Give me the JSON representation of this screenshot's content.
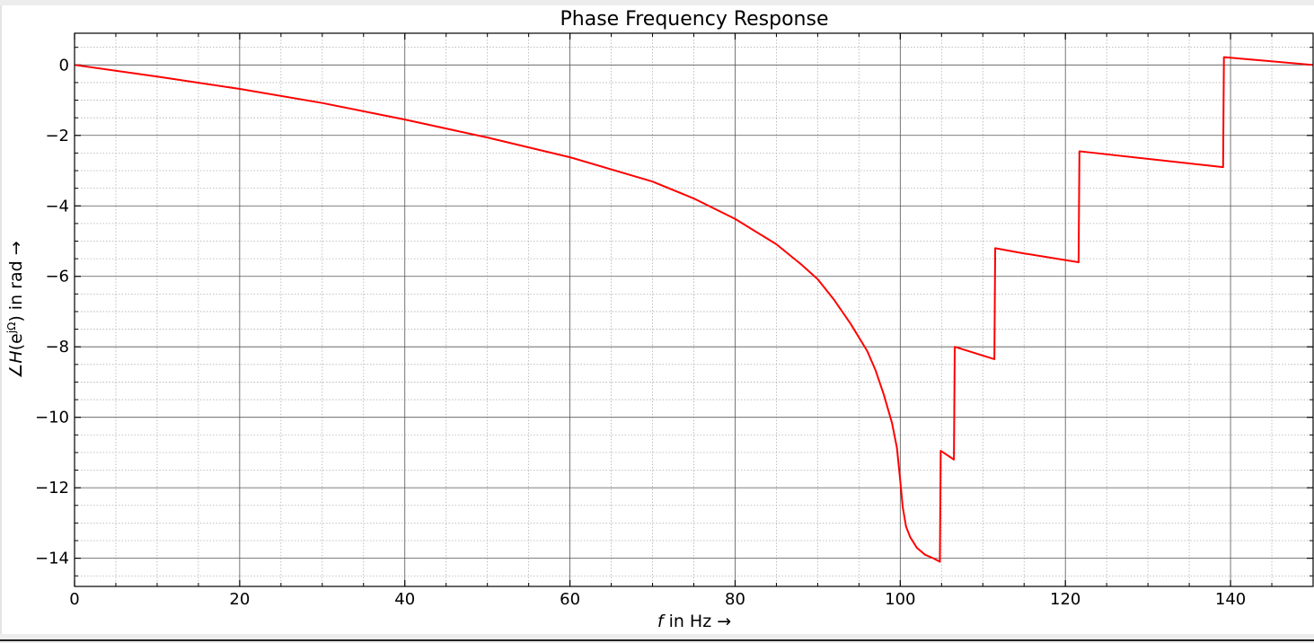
{
  "chart_data": {
    "type": "line",
    "title": "Phase Frequency Response",
    "xlabel": {
      "var": "f",
      "rest": " in Hz →"
    },
    "ylabel": {
      "angle": "∠",
      "var": "H",
      "open": "(e",
      "sup": "jΩ",
      "rest": ") in rad →"
    },
    "xlim": [
      0,
      150
    ],
    "ylim": [
      -14.8,
      0.9
    ],
    "x_major_ticks": [
      0,
      20,
      40,
      60,
      80,
      100,
      120,
      140
    ],
    "x_tick_labels": [
      "0",
      "20",
      "40",
      "60",
      "80",
      "100",
      "120",
      "140"
    ],
    "x_minor_step": 5,
    "y_major_ticks": [
      0,
      -2,
      -4,
      -6,
      -8,
      -10,
      -12,
      -14
    ],
    "y_tick_labels": [
      "0",
      "−2",
      "−4",
      "−6",
      "−8",
      "−10",
      "−12",
      "−14"
    ],
    "y_minor_step": 0.5,
    "grid": true,
    "line_color": "#ff0000",
    "series": [
      {
        "name": "",
        "x": [
          0,
          10,
          20,
          30,
          40,
          50,
          60,
          70,
          75,
          80,
          85,
          88,
          90,
          92,
          94,
          96,
          97,
          98,
          99,
          99.6,
          100,
          100.3,
          100.7,
          101.2,
          102,
          103,
          104,
          104.8,
          104.9,
          106.5,
          106.6,
          111.4,
          111.5,
          115,
          121.6,
          121.7,
          139.1,
          139.2,
          150
        ],
        "y": [
          0,
          -0.33,
          -0.68,
          -1.08,
          -1.55,
          -2.06,
          -2.62,
          -3.31,
          -3.79,
          -4.37,
          -5.09,
          -5.66,
          -6.08,
          -6.67,
          -7.35,
          -8.12,
          -8.66,
          -9.35,
          -10.16,
          -10.87,
          -11.8,
          -12.55,
          -13.1,
          -13.4,
          -13.7,
          -13.9,
          -14.0,
          -14.1,
          -10.95,
          -11.2,
          -8.0,
          -8.35,
          -5.2,
          -5.35,
          -5.6,
          -2.45,
          -2.9,
          0.22,
          0.0
        ]
      }
    ]
  }
}
